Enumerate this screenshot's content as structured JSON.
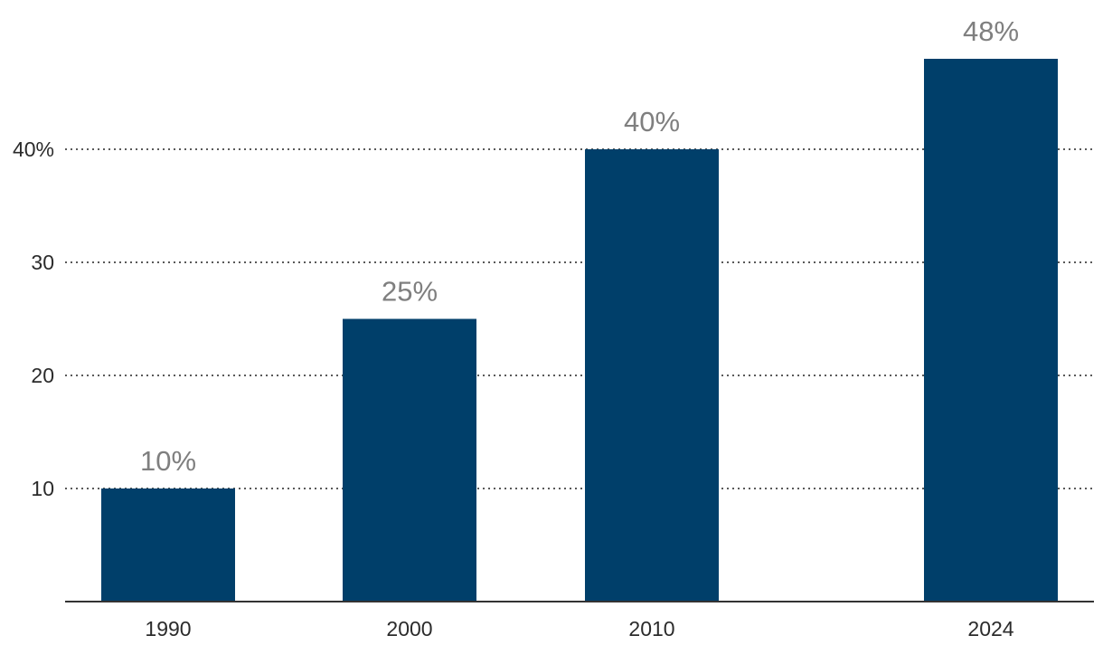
{
  "chart_data": {
    "type": "bar",
    "title": "",
    "xlabel": "",
    "ylabel": "",
    "categories": [
      "1990",
      "2000",
      "2010",
      "2024"
    ],
    "values": [
      10,
      25,
      40,
      48
    ],
    "data_labels": [
      "10%",
      "25%",
      "40%",
      "48%"
    ],
    "y_ticks": [
      {
        "value": 10,
        "label": "10"
      },
      {
        "value": 20,
        "label": "20"
      },
      {
        "value": 30,
        "label": "30"
      },
      {
        "value": 40,
        "label": "40%"
      }
    ],
    "ylim": [
      0,
      48
    ],
    "grid": "horizontal dotted",
    "legend": "none",
    "bar_color": "#003f6a",
    "label_color": "#7f7f7f"
  }
}
